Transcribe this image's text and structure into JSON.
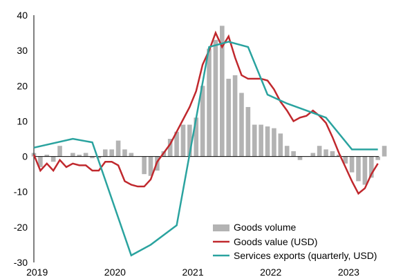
{
  "chart_data": {
    "type": "bar+line",
    "title": "",
    "xlabel": "",
    "ylabel": "",
    "ylim": [
      -30,
      40
    ],
    "yticks": [
      -30,
      -20,
      -10,
      0,
      10,
      20,
      30,
      40
    ],
    "xticks": [
      "2019",
      "2020",
      "2021",
      "2022",
      "2023"
    ],
    "x_start": "2019-01",
    "grid": false,
    "legend_position": "bottom-right",
    "colors": {
      "volume": "#b3b3b3",
      "value": "#c0282d",
      "services": "#2aa39f",
      "axis": "#000000"
    },
    "series": [
      {
        "name": "Goods volume",
        "type": "bar",
        "values": [
          1,
          -3,
          0.5,
          -1.5,
          3,
          0,
          1,
          0.5,
          1,
          -0.5,
          -0.5,
          2,
          2,
          4.5,
          2,
          1,
          0,
          -5,
          -5.5,
          -4,
          1.5,
          5,
          7,
          9,
          9,
          11,
          20,
          30.5,
          33,
          37,
          22,
          23,
          18,
          14,
          9,
          9,
          8.5,
          8,
          6.5,
          3,
          1.5,
          -1,
          0,
          1,
          3,
          2,
          1.5,
          0.5,
          -2,
          -4.5,
          -7,
          -8,
          -6,
          -1,
          3
        ]
      },
      {
        "name": "Goods value (USD)",
        "type": "line",
        "values": [
          0.5,
          -4,
          -2,
          -4,
          -1,
          -3,
          -2,
          -2.5,
          -2.5,
          -4,
          -4,
          -1.5,
          -1.5,
          -2.5,
          -7,
          -8,
          -8.5,
          -8.5,
          -6.5,
          -1.5,
          1,
          3.5,
          7,
          10.5,
          14,
          18.5,
          26,
          30,
          35,
          31,
          34,
          28,
          23,
          22,
          22,
          22,
          21.5,
          19,
          15.5,
          13,
          10,
          11,
          11.5,
          13,
          11.5,
          9.5,
          5.5,
          1,
          -3,
          -7,
          -10.5,
          -9,
          -5,
          -2
        ]
      },
      {
        "name": "Services exports (quarterly, USD)",
        "type": "line",
        "x_month": [
          0,
          6,
          9,
          15,
          18,
          22,
          27,
          30,
          33,
          36,
          39,
          42,
          45,
          49,
          53
        ],
        "values": [
          2.5,
          5,
          4,
          -28,
          -25,
          -19.5,
          31,
          32.5,
          31,
          17.5,
          15,
          13,
          11,
          2,
          2
        ]
      }
    ]
  }
}
